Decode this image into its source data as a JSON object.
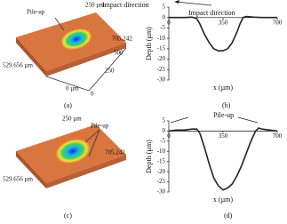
{
  "images": [
    {
      "caption": "(a)",
      "labels": [
        "Pile-up",
        "250 µm",
        "Impact direction",
        "705.242",
        "500",
        "250",
        "0 µm",
        "529.656 µm",
        "0"
      ]
    },
    {
      "caption": "(c)",
      "labels": [
        "250 µm",
        "Pile-up",
        "705.242",
        "529.656 µm"
      ]
    }
  ],
  "chart_data": [
    {
      "type": "line",
      "caption": "(b)",
      "annotation": "Impact direction",
      "x_label": "x (µm)",
      "y_label": "Depth (µm)",
      "xlim": [
        0,
        700
      ],
      "xticks": [
        0,
        350,
        700
      ],
      "ylim": [
        -30,
        5
      ],
      "yticks": [
        5,
        0,
        -5,
        -10,
        -15,
        -20,
        -25,
        -30
      ],
      "color": "#222",
      "x": [
        0,
        50,
        100,
        150,
        180,
        200,
        230,
        260,
        290,
        320,
        350,
        380,
        410,
        440,
        460,
        480,
        500,
        550,
        600,
        650,
        700
      ],
      "values": [
        0,
        0,
        0,
        0.2,
        -0.5,
        -3,
        -8,
        -12,
        -15,
        -16,
        -16,
        -15,
        -12,
        -7,
        -3,
        0,
        0.5,
        0.2,
        0,
        0,
        0
      ]
    },
    {
      "type": "line",
      "caption": "(d)",
      "annotation": "Pile-up",
      "x_label": "x (µm)",
      "y_label": "Depth (µm)",
      "xlim": [
        0,
        700
      ],
      "xticks": [
        0,
        350,
        700
      ],
      "ylim": [
        -30,
        5
      ],
      "yticks": [
        5,
        0,
        -5,
        -10,
        -15,
        -20,
        -25,
        -30
      ],
      "color": "#222",
      "x": [
        0,
        50,
        100,
        150,
        180,
        200,
        230,
        260,
        290,
        320,
        350,
        380,
        410,
        440,
        470,
        500,
        530,
        560,
        580,
        600,
        650,
        700
      ],
      "values": [
        0,
        0.5,
        0.5,
        1,
        1,
        -1,
        -8,
        -16,
        -23,
        -27,
        -29,
        -28,
        -26,
        -22,
        -17,
        -11,
        -5,
        0,
        1.5,
        1,
        0.5,
        0
      ]
    }
  ]
}
